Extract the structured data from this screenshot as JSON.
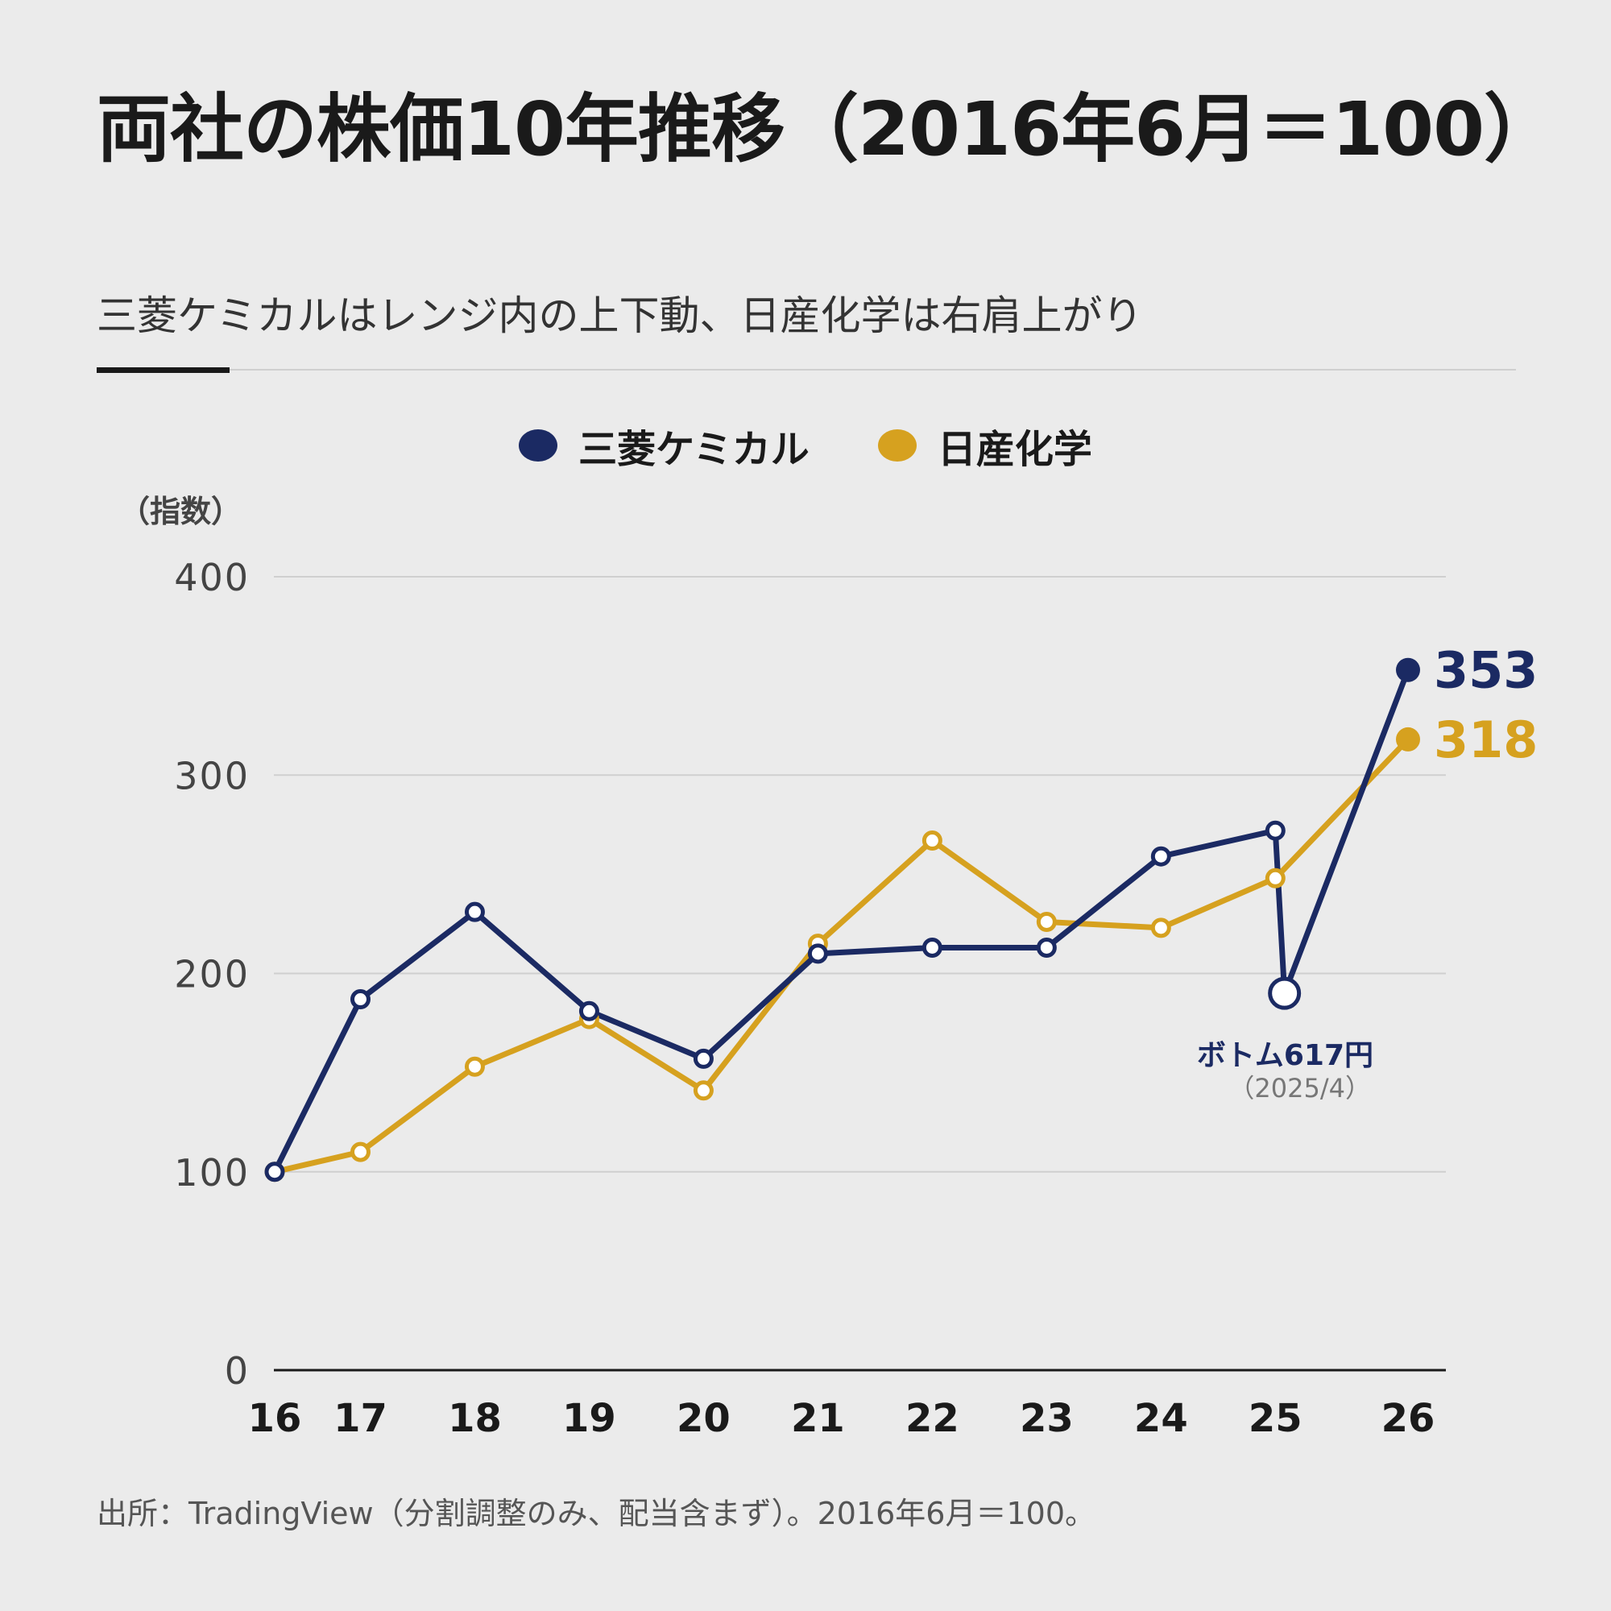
{
  "title": "両社の株価10年推移（2016年6月＝100）",
  "subtitle": "三菱ケミカルはレンジ内の上下動、日産化学は右肩上がり",
  "source": "出所：TradingView（分割調整のみ、配当含まず）。2016年6月＝100。",
  "colors": {
    "mitsubishi": "#1b2a63",
    "nissan": "#d6a11f",
    "grid": "#cfcfcf",
    "axis": "#1a1a1a"
  },
  "chart_data": {
    "type": "line",
    "ylabel": "（指数）",
    "ylim": [
      0,
      400
    ],
    "yticks": [
      0,
      100,
      200,
      300,
      400
    ],
    "x_ticks": [
      "16",
      "17",
      "18",
      "19",
      "20",
      "21",
      "22",
      "23",
      "24",
      "25",
      "26"
    ],
    "legend_position": "top-center",
    "grid": true,
    "series": [
      {
        "name": "三菱ケミカル",
        "x": [
          2016.42,
          2017.17,
          2018.17,
          2019.17,
          2020.17,
          2021.17,
          2022.17,
          2023.17,
          2024.17,
          2025.17,
          2025.25,
          2026.33
        ],
        "values": [
          100,
          187,
          231,
          181,
          157,
          210,
          213,
          213,
          259,
          272,
          190,
          353
        ],
        "end_label": "353"
      },
      {
        "name": "日産化学",
        "x": [
          2016.42,
          2017.17,
          2018.17,
          2019.17,
          2020.17,
          2021.17,
          2022.17,
          2023.17,
          2024.17,
          2025.17,
          2026.33
        ],
        "values": [
          100,
          110,
          153,
          177,
          141,
          215,
          267,
          226,
          223,
          248,
          318
        ],
        "end_label": "318"
      }
    ],
    "annotation": {
      "label": "ボトム617円",
      "sublabel": "（2025/4）",
      "x": 2025.25,
      "y": 190
    }
  }
}
